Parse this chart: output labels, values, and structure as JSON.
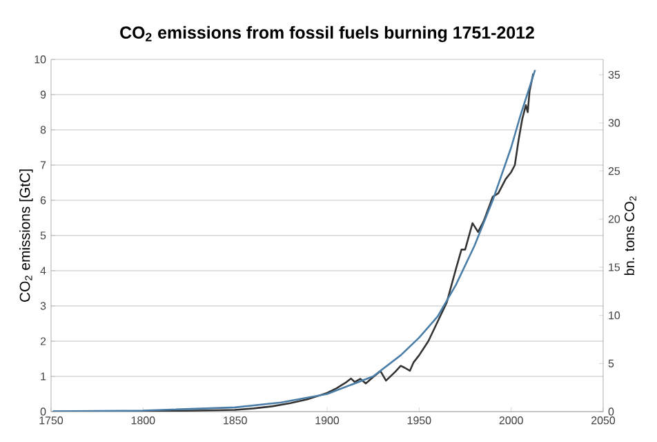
{
  "chart_data": {
    "type": "line",
    "title": "CO$_{2}$ emissions from fossil fuels burning 1751-2012",
    "ylabel": "CO$_{2}$ emissions  [GtC]",
    "y2label": "bn. tons CO$_{2}$",
    "xlim": [
      1750,
      2050
    ],
    "xticks": [
      1750,
      1800,
      1850,
      1900,
      1950,
      2000,
      2050
    ],
    "ylim": [
      0,
      10
    ],
    "yticks": [
      0,
      1,
      2,
      3,
      4,
      5,
      6,
      7,
      8,
      9,
      10
    ],
    "y2lim": [
      0,
      36.6
    ],
    "y2ticks": [
      0,
      5,
      10,
      15,
      20,
      25,
      30,
      35
    ],
    "grid": "y",
    "marker": "none",
    "line_style": "solid",
    "series": [
      {
        "color": "#333333",
        "x": [
          1751,
          1800,
          1830,
          1850,
          1860,
          1870,
          1880,
          1890,
          1900,
          1905,
          1910,
          1913,
          1915,
          1918,
          1921,
          1925,
          1929,
          1932,
          1937,
          1940,
          1942,
          1945,
          1947,
          1950,
          1955,
          1960,
          1965,
          1970,
          1973,
          1975,
          1979,
          1982,
          1985,
          1990,
          1993,
          1997,
          2000,
          2002,
          2004,
          2006,
          2008,
          2009,
          2010,
          2012
        ],
        "values": [
          0.0,
          0.01,
          0.03,
          0.05,
          0.09,
          0.15,
          0.24,
          0.36,
          0.53,
          0.66,
          0.82,
          0.94,
          0.84,
          0.93,
          0.8,
          0.98,
          1.15,
          0.88,
          1.13,
          1.3,
          1.25,
          1.16,
          1.4,
          1.6,
          2.0,
          2.55,
          3.1,
          4.05,
          4.6,
          4.6,
          5.35,
          5.1,
          5.4,
          6.1,
          6.2,
          6.6,
          6.8,
          7.0,
          7.7,
          8.3,
          8.7,
          8.5,
          9.1,
          9.6
        ]
      },
      {
        "color": "#4a7ea8",
        "x": [
          1751,
          1800,
          1850,
          1875,
          1900,
          1925,
          1940,
          1950,
          1960,
          1970,
          1980,
          1990,
          2000,
          2005,
          2013
        ],
        "values": [
          0.01,
          0.03,
          0.12,
          0.26,
          0.5,
          1.0,
          1.6,
          2.1,
          2.7,
          3.6,
          4.7,
          6.0,
          7.5,
          8.4,
          9.7
        ]
      }
    ]
  }
}
